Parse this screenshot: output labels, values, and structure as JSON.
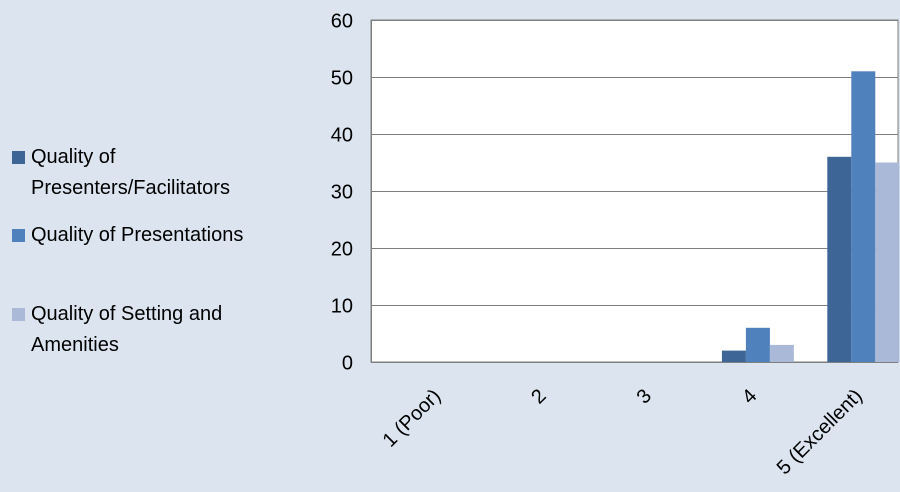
{
  "colors": {
    "background": "#dbe4ef",
    "plot_background": "#ffffff",
    "axis": "#7f7f7f"
  },
  "chart_data": {
    "type": "bar",
    "title": "",
    "xlabel": "",
    "ylabel": "",
    "categories": [
      "1 (Poor)",
      "2",
      "3",
      "4",
      "5 (Excellent)"
    ],
    "ylim": [
      0,
      60
    ],
    "yticks": [
      0,
      10,
      20,
      30,
      40,
      50,
      60
    ],
    "grid": true,
    "legend_position": "left",
    "series": [
      {
        "name": "Quality of Presenters/Facilitators",
        "color": "#3d6697",
        "values": [
          0,
          0,
          0,
          2,
          36
        ]
      },
      {
        "name": "Quality of Presentations",
        "color": "#4f81bd",
        "values": [
          0,
          0,
          0,
          6,
          51
        ]
      },
      {
        "name": "Quality of Setting and Amenities",
        "color": "#aab9d8",
        "values": [
          0,
          0,
          0,
          3,
          35
        ]
      }
    ]
  }
}
